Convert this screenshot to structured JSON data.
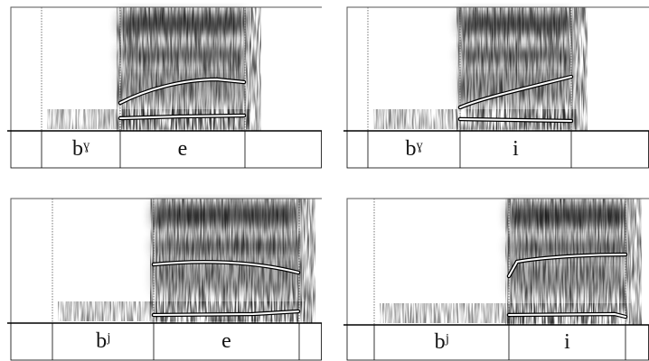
{
  "panels": [
    {
      "segments": [
        "bˠ",
        "e"
      ]
    },
    {
      "segments": [
        "bˠ",
        "i"
      ]
    },
    {
      "segments": [
        "bʲ",
        "e"
      ]
    },
    {
      "segments": [
        "bʲ",
        "i"
      ]
    }
  ]
}
